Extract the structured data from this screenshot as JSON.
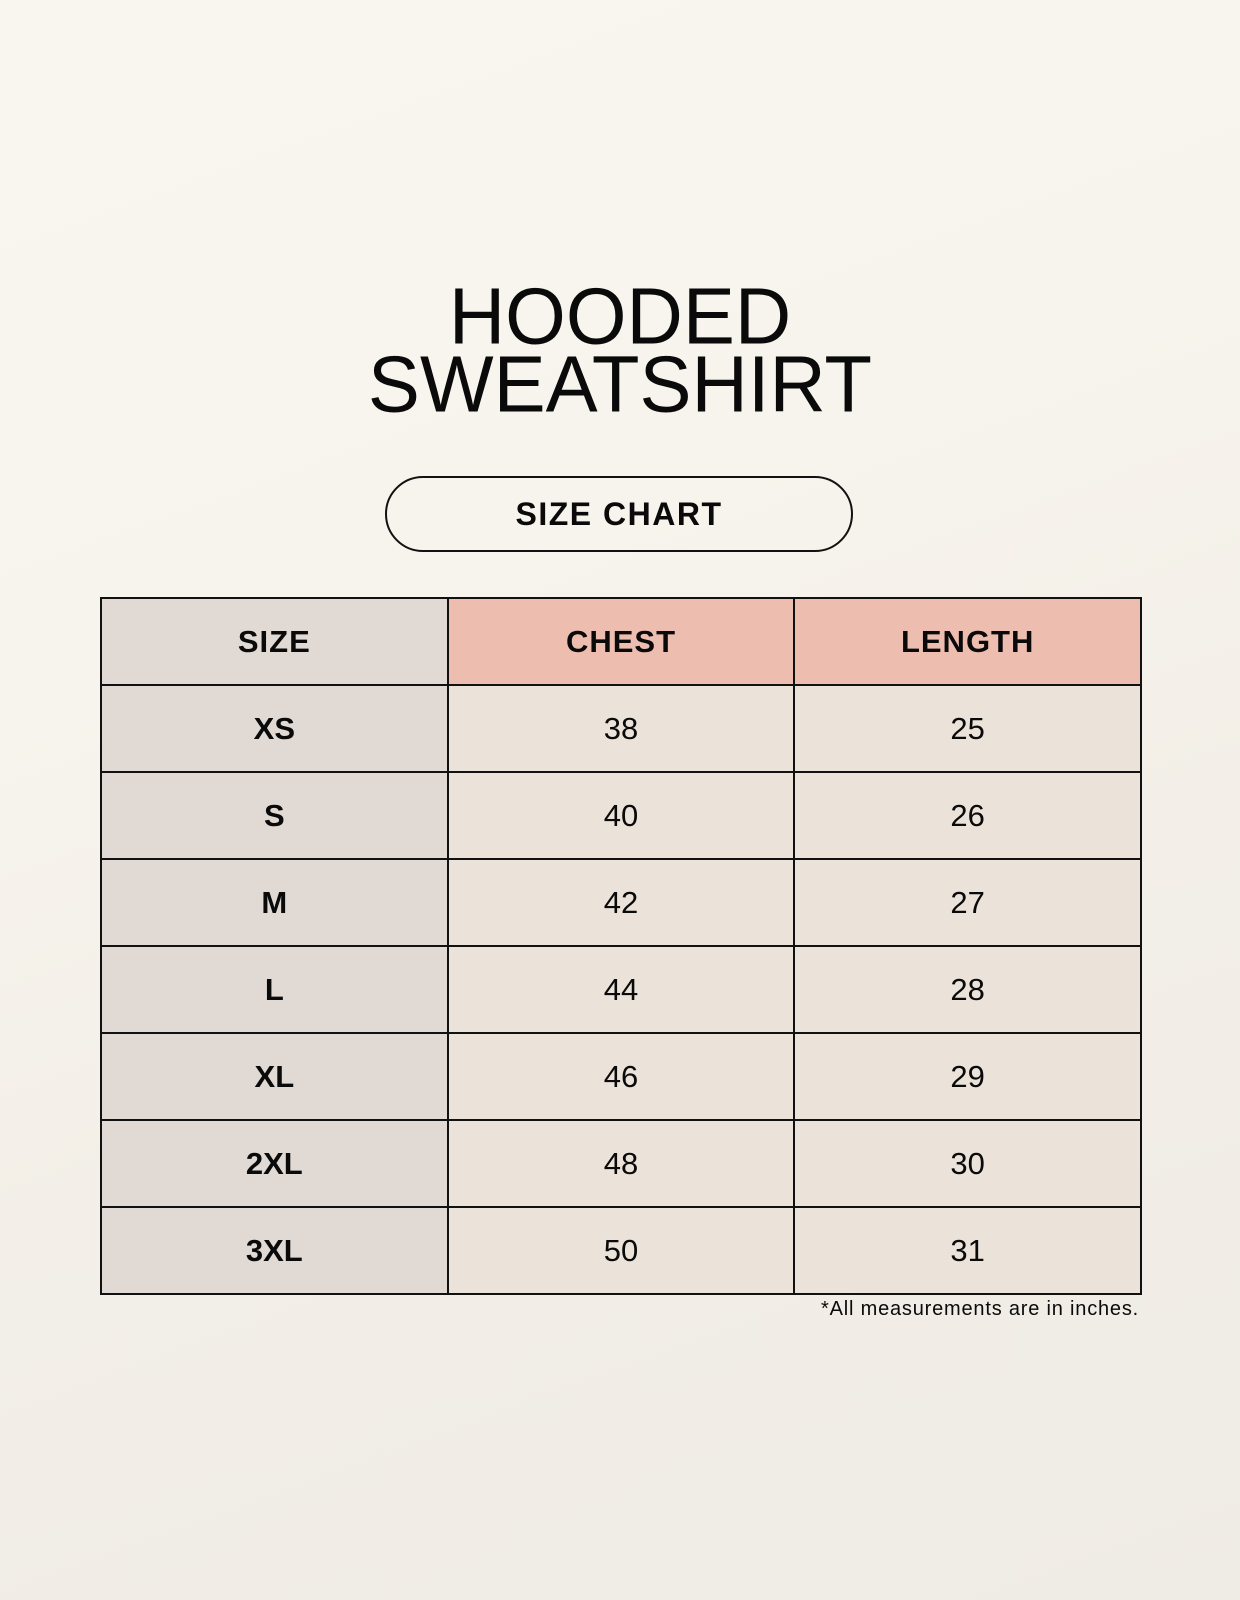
{
  "title": {
    "line1": "HOODED",
    "line2": "SWEATSHIRT"
  },
  "badge": "SIZE CHART",
  "table": {
    "headers": [
      "SIZE",
      "CHEST",
      "LENGTH"
    ],
    "rows": [
      {
        "size": "XS",
        "chest": "38",
        "length": "25"
      },
      {
        "size": "S",
        "chest": "40",
        "length": "26"
      },
      {
        "size": "M",
        "chest": "42",
        "length": "27"
      },
      {
        "size": "L",
        "chest": "44",
        "length": "28"
      },
      {
        "size": "XL",
        "chest": "46",
        "length": "29"
      },
      {
        "size": "2XL",
        "chest": "48",
        "length": "30"
      },
      {
        "size": "3XL",
        "chest": "50",
        "length": "31"
      }
    ]
  },
  "footnote": "*All measurements are in inches.",
  "colors": {
    "size_column": "#e0d9d4",
    "header_accent": "#edbdb0",
    "value_cells": "#ebe3da"
  }
}
